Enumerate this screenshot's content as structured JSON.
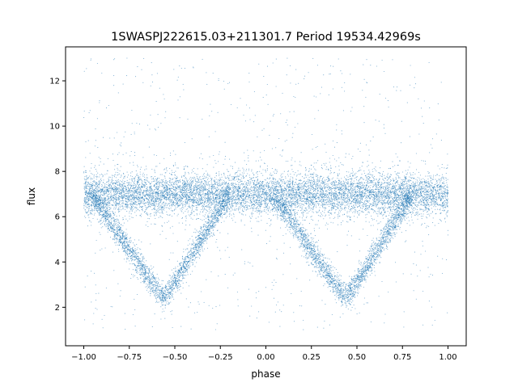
{
  "chart_data": {
    "type": "scatter",
    "title": "1SWASPJ222615.03+211301.7 Period 19534.42969s",
    "xlabel": "phase",
    "ylabel": "flux",
    "xlim": [
      -1.1,
      1.1
    ],
    "ylim": [
      0.3,
      13.5
    ],
    "xticks": [
      -1.0,
      -0.75,
      -0.5,
      -0.25,
      0.0,
      0.25,
      0.5,
      0.75,
      1.0
    ],
    "xtick_labels": [
      "−1.00",
      "−0.75",
      "−0.50",
      "−0.25",
      "0.00",
      "0.25",
      "0.50",
      "0.75",
      "1.00"
    ],
    "yticks": [
      2,
      4,
      6,
      8,
      10,
      12
    ],
    "ytick_labels": [
      "2",
      "4",
      "6",
      "8",
      "10",
      "12"
    ],
    "grid": false,
    "color": "#1f77b4",
    "baseline": {
      "phase_range": [
        -1.0,
        1.0
      ],
      "flux": 7.0,
      "spread": 0.45
    },
    "eclipses": [
      {
        "profile": [
          [
            -0.96,
            7.0
          ],
          [
            -0.56,
            2.3
          ],
          [
            -0.2,
            7.0
          ]
        ],
        "spread": 0.25
      },
      {
        "profile": [
          [
            0.04,
            7.0
          ],
          [
            0.44,
            2.3
          ],
          [
            0.8,
            7.0
          ]
        ],
        "spread": 0.25
      }
    ],
    "outlier_flux_range": [
      1.0,
      13.0
    ]
  }
}
